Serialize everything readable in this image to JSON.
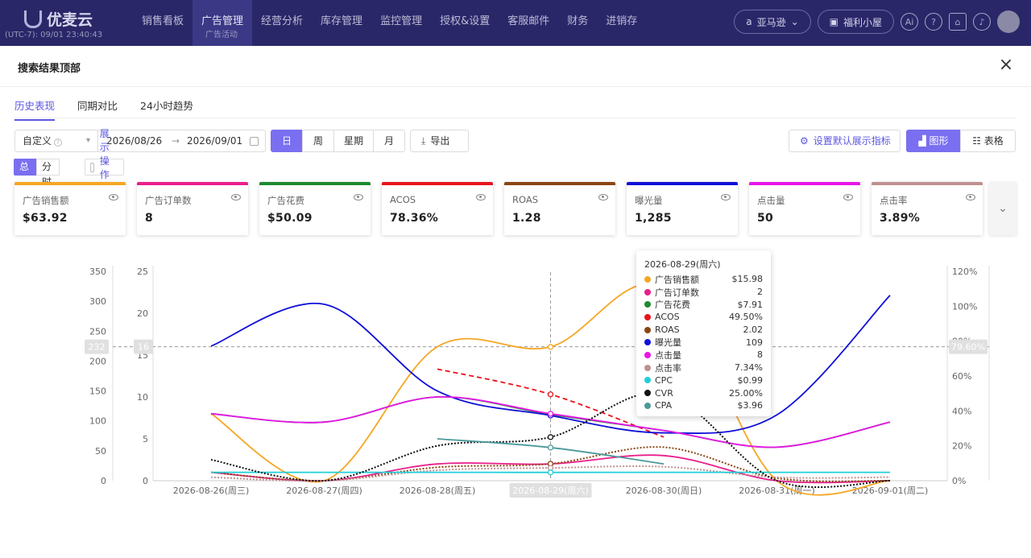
{
  "nav": {
    "logo": "优麦云",
    "timezone": "(UTC-7): 09/01 23:40:43",
    "menu": [
      "销售看板",
      "广告管理",
      "经营分析",
      "库存管理",
      "监控管理",
      "授权&设置",
      "客服邮件",
      "财务",
      "进销存"
    ],
    "active_sub": "广告活动",
    "marketplace": "亚马逊",
    "promo": "福利小屋"
  },
  "modal": {
    "title": "搜索结果顶部",
    "tabs": [
      "历史表现",
      "同期对比",
      "24小时趋势"
    ],
    "toolbar": {
      "range_select": "自定义",
      "start_date": "2026/08/26",
      "end_date": "2026/09/01",
      "arrow": "→",
      "granularity": [
        "日",
        "周",
        "星期",
        "月"
      ],
      "export": "导出",
      "default_metrics": "设置默认展示指标",
      "view_chart": "图形",
      "view_table": "表格"
    },
    "total_split": [
      "总计",
      "分时"
    ],
    "show_log": "展示操作日志"
  },
  "metrics": [
    {
      "label": "广告销售额",
      "value": "$63.92",
      "color": "#f5a623"
    },
    {
      "label": "广告订单数",
      "value": "8",
      "color": "#e91e8c"
    },
    {
      "label": "广告花费",
      "value": "$50.09",
      "color": "#1e8a2e"
    },
    {
      "label": "ACOS",
      "value": "78.36%",
      "color": "#e8141c"
    },
    {
      "label": "ROAS",
      "value": "1.28",
      "color": "#8b4513"
    },
    {
      "label": "曝光量",
      "value": "1,285",
      "color": "#1010d8"
    },
    {
      "label": "点击量",
      "value": "50",
      "color": "#e815e8"
    },
    {
      "label": "点击率",
      "value": "3.89%",
      "color": "#c09090"
    }
  ],
  "chart_data": {
    "type": "line",
    "categories": [
      "2026-08-26(周三)",
      "2026-08-27(周四)",
      "2026-08-28(周五)",
      "2026-08-29(周六)",
      "2026-08-30(周日)",
      "2026-08-31(周一)",
      "2026-09-01(周二)"
    ],
    "axes": {
      "left_outer": {
        "ticks": [
          0,
          50,
          100,
          150,
          200,
          250,
          300,
          350
        ],
        "ylim": [
          0,
          350
        ]
      },
      "left_inner": {
        "ticks": [
          0,
          5,
          10,
          15,
          20,
          25
        ],
        "ylim": [
          0,
          25
        ]
      },
      "right": {
        "ticks": [
          "0%",
          "20%",
          "40%",
          "60%",
          "80%",
          "100%",
          "120%"
        ],
        "ylim": [
          0,
          120
        ]
      }
    },
    "crosshair": {
      "left_outer": "232",
      "left_inner": "16",
      "right": "79.60%",
      "x_label": "2026-08-29(周六)"
    },
    "series": [
      {
        "name": "广告销售额",
        "axis": "left_inner",
        "color": "#f5a623",
        "values": [
          8,
          0,
          16,
          15.98,
          23,
          0,
          0
        ]
      },
      {
        "name": "广告订单数",
        "axis": "left_inner",
        "color": "#e91e8c",
        "values": [
          1,
          0,
          2,
          2,
          3,
          0,
          0
        ]
      },
      {
        "name": "广告花费",
        "axis": "left_inner",
        "color": "#1e8a2e",
        "values": [
          8,
          7,
          10,
          7.91,
          6,
          4,
          7
        ]
      },
      {
        "name": "ACOS",
        "axis": "right",
        "color": "#e8141c",
        "dashed": true,
        "values": [
          null,
          null,
          64,
          49.5,
          25,
          null,
          null
        ]
      },
      {
        "name": "ROAS",
        "axis": "left_inner",
        "color": "#8b4513",
        "dotted": true,
        "values": [
          1,
          0,
          1.6,
          2.02,
          4,
          0.3,
          0
        ]
      },
      {
        "name": "曝光量",
        "axis": "left_outer",
        "color": "#1010d8",
        "values": [
          225,
          295,
          150,
          109,
          80,
          110,
          310
        ]
      },
      {
        "name": "点击量",
        "axis": "left_inner",
        "color": "#e815e8",
        "values": [
          8,
          7,
          10,
          8,
          6,
          4,
          7
        ]
      },
      {
        "name": "点击率",
        "axis": "right",
        "color": "#c09090",
        "dotted": true,
        "values": [
          2,
          0,
          6,
          7.34,
          8,
          2,
          2
        ]
      },
      {
        "name": "CPC",
        "axis": "left_inner",
        "color": "#1ecfd8",
        "values": [
          1,
          1,
          1,
          0.99,
          1,
          1,
          1
        ]
      },
      {
        "name": "CVR",
        "axis": "right",
        "color": "#111111",
        "dotted": true,
        "values": [
          12,
          0,
          20,
          25,
          50,
          0,
          0
        ]
      },
      {
        "name": "CPA",
        "axis": "left_inner",
        "color": "#4a9a9a",
        "values": [
          null,
          null,
          5,
          3.96,
          2,
          null,
          null
        ]
      }
    ]
  },
  "tooltip": {
    "title": "2026-08-29(周六)",
    "rows": [
      {
        "name": "广告销售额",
        "value": "$15.98",
        "color": "#f5a623"
      },
      {
        "name": "广告订单数",
        "value": "2",
        "color": "#e91e8c"
      },
      {
        "name": "广告花费",
        "value": "$7.91",
        "color": "#1e8a2e"
      },
      {
        "name": "ACOS",
        "value": "49.50%",
        "color": "#e8141c"
      },
      {
        "name": "ROAS",
        "value": "2.02",
        "color": "#8b4513"
      },
      {
        "name": "曝光量",
        "value": "109",
        "color": "#1010d8"
      },
      {
        "name": "点击量",
        "value": "8",
        "color": "#e815e8"
      },
      {
        "name": "点击率",
        "value": "7.34%",
        "color": "#c09090"
      },
      {
        "name": "CPC",
        "value": "$0.99",
        "color": "#1ecfd8"
      },
      {
        "name": "CVR",
        "value": "25.00%",
        "color": "#111111"
      },
      {
        "name": "CPA",
        "value": "$3.96",
        "color": "#4a9a9a"
      }
    ]
  }
}
